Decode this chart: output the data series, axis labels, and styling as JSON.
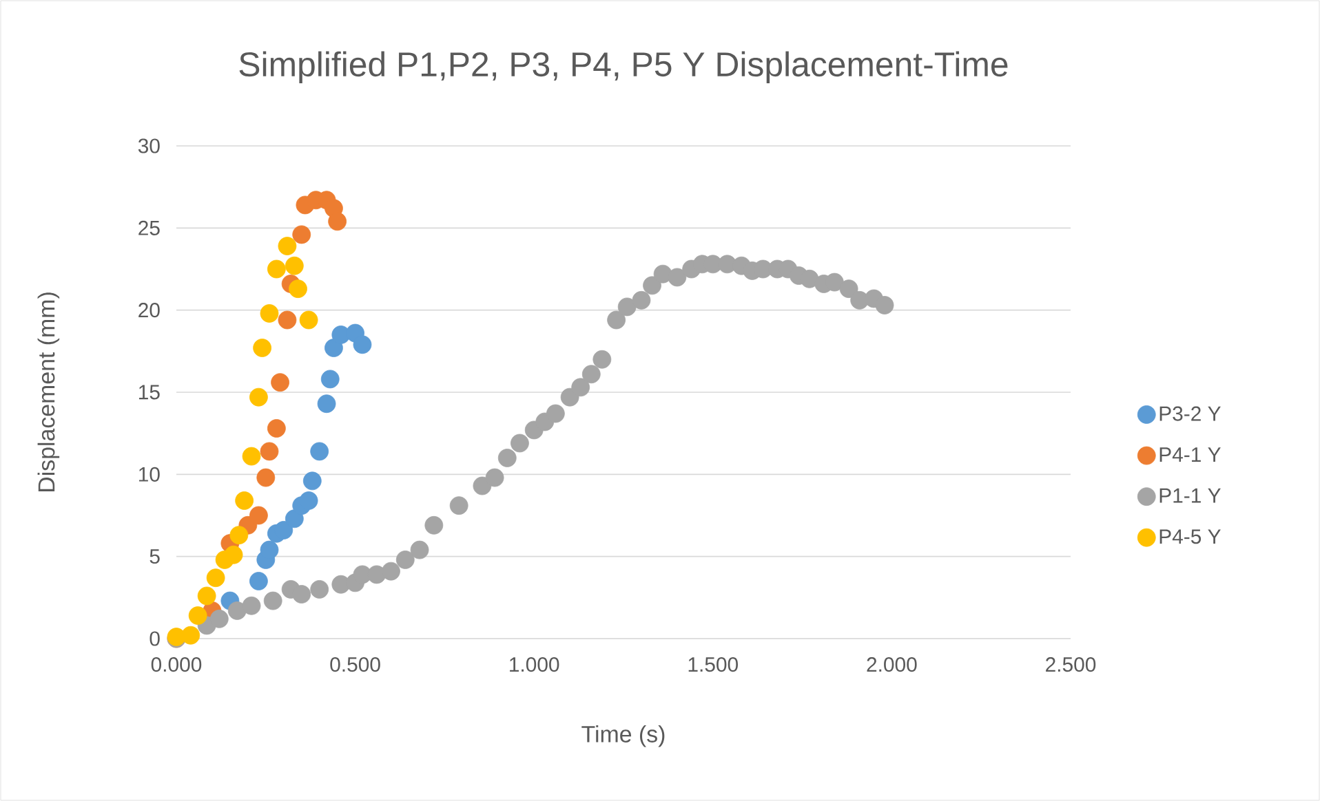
{
  "chart_data": {
    "type": "scatter",
    "title": "Simplified P1,P2, P3, P4, P5 Y Displacement-Time",
    "xlabel": "Time (s)",
    "ylabel": "Displacement (mm)",
    "xlim": [
      0,
      2.5
    ],
    "ylim": [
      0,
      30
    ],
    "xticks": [
      {
        "value": 0,
        "label": "0.000"
      },
      {
        "value": 0.5,
        "label": "0.500"
      },
      {
        "value": 1,
        "label": "1.000"
      },
      {
        "value": 1.5,
        "label": "1.500"
      },
      {
        "value": 2,
        "label": "2.000"
      },
      {
        "value": 2.5,
        "label": "2.500"
      }
    ],
    "yticks": [
      0,
      5,
      10,
      15,
      20,
      25,
      30
    ],
    "grid": "y",
    "legend": "right",
    "marker": "circle",
    "series": [
      {
        "name": "P3-2 Y",
        "color": "#5b9bd5",
        "x": [
          0.15,
          0.23,
          0.25,
          0.26,
          0.28,
          0.3,
          0.33,
          0.35,
          0.37,
          0.38,
          0.4,
          0.42,
          0.43,
          0.44,
          0.46,
          0.5,
          0.52
        ],
        "values": [
          2.3,
          3.5,
          4.8,
          5.4,
          6.4,
          6.6,
          7.3,
          8.1,
          8.4,
          9.6,
          11.4,
          14.3,
          15.8,
          17.7,
          18.5,
          18.6,
          17.9
        ]
      },
      {
        "name": "P4-1 Y",
        "color": "#ed7d31",
        "x": [
          0,
          0.02,
          0.1,
          0.13,
          0.15,
          0.2,
          0.23,
          0.25,
          0.26,
          0.28,
          0.29,
          0.31,
          0.32,
          0.35,
          0.36,
          0.39,
          0.42,
          0.44,
          0.45
        ],
        "values": [
          0,
          null,
          1.7,
          null,
          5.8,
          6.9,
          7.5,
          9.8,
          11.4,
          12.8,
          15.6,
          19.4,
          21.6,
          24.6,
          26.4,
          26.7,
          26.7,
          26.2,
          25.4
        ]
      },
      {
        "name": "P1-1 Y",
        "color": "#a5a5a5",
        "x": [
          0,
          0.085,
          0.12,
          0.17,
          0.21,
          0.27,
          0.32,
          0.35,
          0.4,
          0.46,
          0.5,
          0.52,
          0.56,
          0.6,
          0.64,
          0.68,
          0.72,
          0.79,
          0.855,
          0.89,
          0.925,
          0.96,
          1.0,
          1.03,
          1.06,
          1.1,
          1.13,
          1.16,
          1.19,
          1.23,
          1.26,
          1.3,
          1.33,
          1.36,
          1.4,
          1.44,
          1.47,
          1.5,
          1.54,
          1.58,
          1.61,
          1.64,
          1.68,
          1.71,
          1.74,
          1.77,
          1.81,
          1.84,
          1.88,
          1.91,
          1.95,
          1.98
        ],
        "values": [
          0,
          0.8,
          1.2,
          1.7,
          2.0,
          2.3,
          3.0,
          2.7,
          3.0,
          3.3,
          3.4,
          3.9,
          3.9,
          4.1,
          4.8,
          5.4,
          6.9,
          8.1,
          9.3,
          9.8,
          11.0,
          11.9,
          12.7,
          13.2,
          13.7,
          14.7,
          15.3,
          16.1,
          17.0,
          19.4,
          20.2,
          20.6,
          21.5,
          22.2,
          22.0,
          22.5,
          22.8,
          22.8,
          22.8,
          22.7,
          22.4,
          22.5,
          22.5,
          22.5,
          22.1,
          21.9,
          21.6,
          21.7,
          21.3,
          20.6,
          20.7,
          20.3
        ]
      },
      {
        "name": "P4-5 Y",
        "color": "#ffc000",
        "x": [
          0,
          0.04,
          0.06,
          0.085,
          0.11,
          0.135,
          0.16,
          0.175,
          0.19,
          0.21,
          0.23,
          0.24,
          0.26,
          0.28,
          0.3,
          0.31,
          0.33,
          0.34,
          0.37
        ],
        "values": [
          0.1,
          0.2,
          1.4,
          2.6,
          3.7,
          4.8,
          5.1,
          6.3,
          8.4,
          11.1,
          14.7,
          17.7,
          19.8,
          22.5,
          null,
          23.9,
          22.7,
          21.3,
          19.4
        ]
      }
    ]
  }
}
